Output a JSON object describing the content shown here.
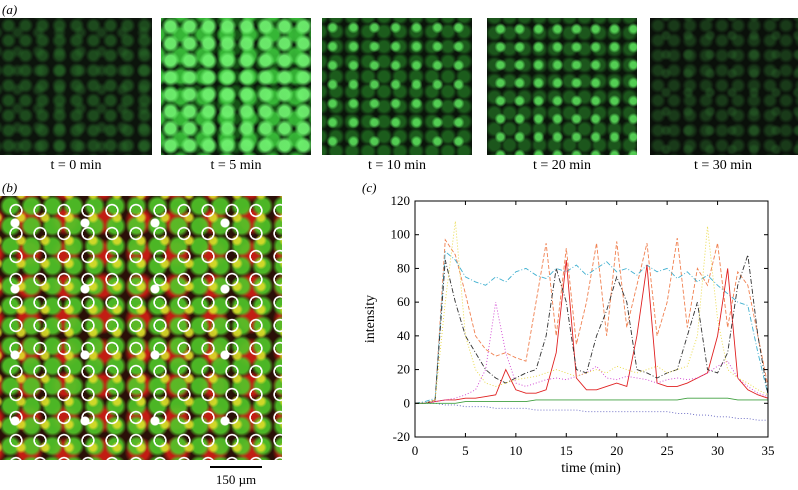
{
  "panel_a": {
    "label": "(a)",
    "captions": [
      "t = 0 min",
      "t = 5 min",
      "t = 10 min",
      "t = 20 min",
      "t = 30 min"
    ]
  },
  "panel_b": {
    "label": "(b)",
    "scale_bar": "150 µm"
  },
  "chart_data": {
    "type": "line",
    "panel_label": "(c)",
    "xlabel": "time (min)",
    "ylabel": "intensity",
    "x": [
      0,
      1,
      2,
      3,
      4,
      5,
      6,
      7,
      8,
      9,
      10,
      11,
      12,
      13,
      14,
      15,
      16,
      17,
      18,
      19,
      20,
      21,
      22,
      23,
      24,
      25,
      26,
      27,
      28,
      29,
      30,
      31,
      32,
      33,
      34,
      35
    ],
    "xlim": [
      0,
      35
    ],
    "xticks": [
      0,
      5,
      10,
      15,
      20,
      25,
      30,
      35
    ],
    "ylim": [
      -20,
      120
    ],
    "yticks": [
      -20,
      0,
      20,
      40,
      60,
      80,
      100,
      120
    ],
    "series": [
      {
        "color": "#f08050",
        "dash": "4 2",
        "values": [
          0,
          0,
          2,
          97,
          88,
          65,
          40,
          32,
          28,
          30,
          27,
          25,
          60,
          95,
          40,
          92,
          35,
          60,
          95,
          40,
          96,
          45,
          70,
          95,
          40,
          60,
          98,
          45,
          80,
          70,
          95,
          45,
          78,
          70,
          40,
          10
        ]
      },
      {
        "color": "#40b0d0",
        "dash": "5 2 1 2",
        "values": [
          0,
          1,
          3,
          90,
          85,
          75,
          72,
          70,
          75,
          72,
          78,
          80,
          76,
          74,
          80,
          78,
          82,
          76,
          80,
          84,
          78,
          80,
          76,
          82,
          78,
          80,
          74,
          78,
          72,
          76,
          70,
          65,
          60,
          58,
          30,
          5
        ]
      },
      {
        "color": "#e02020",
        "dash": "none",
        "values": [
          0,
          0,
          1,
          2,
          2,
          3,
          3,
          4,
          5,
          20,
          8,
          6,
          6,
          8,
          30,
          85,
          15,
          8,
          8,
          10,
          12,
          10,
          40,
          82,
          12,
          10,
          10,
          12,
          15,
          18,
          40,
          80,
          15,
          8,
          5,
          3
        ]
      },
      {
        "color": "#303030",
        "dash": "5 2 1 2",
        "values": [
          0,
          0,
          2,
          85,
          60,
          40,
          30,
          20,
          15,
          12,
          15,
          18,
          20,
          40,
          80,
          60,
          20,
          18,
          40,
          55,
          75,
          60,
          20,
          18,
          15,
          18,
          20,
          40,
          60,
          20,
          18,
          30,
          70,
          88,
          40,
          5
        ]
      },
      {
        "color": "#d040d0",
        "dash": "1 2",
        "values": [
          0,
          0,
          1,
          2,
          3,
          5,
          8,
          20,
          60,
          30,
          12,
          10,
          12,
          14,
          15,
          14,
          16,
          18,
          22,
          15,
          14,
          16,
          15,
          14,
          12,
          14,
          15,
          14,
          15,
          18,
          22,
          25,
          15,
          10,
          6,
          4
        ]
      },
      {
        "color": "#e8d840",
        "dash": "1 2",
        "values": [
          0,
          0,
          2,
          60,
          108,
          40,
          20,
          12,
          10,
          12,
          14,
          15,
          16,
          18,
          20,
          18,
          16,
          18,
          20,
          18,
          22,
          20,
          18,
          20,
          22,
          18,
          20,
          22,
          40,
          105,
          50,
          20,
          15,
          12,
          8,
          5
        ]
      },
      {
        "color": "#6060c0",
        "dash": "1 2",
        "values": [
          0,
          0,
          0,
          -1,
          -1,
          -2,
          -2,
          -2,
          -3,
          -3,
          -3,
          -3,
          -4,
          -4,
          -4,
          -4,
          -4,
          -5,
          -5,
          -5,
          -5,
          -5,
          -5,
          -5,
          -5,
          -5,
          -6,
          -6,
          -7,
          -7,
          -8,
          -8,
          -9,
          -9,
          -10,
          -10
        ]
      },
      {
        "color": "#40a040",
        "dash": "none",
        "values": [
          0,
          0,
          0,
          0,
          0,
          1,
          1,
          1,
          1,
          1,
          1,
          1,
          2,
          2,
          2,
          2,
          2,
          2,
          2,
          2,
          2,
          2,
          2,
          2,
          2,
          2,
          2,
          3,
          3,
          3,
          3,
          3,
          2,
          2,
          2,
          2
        ]
      }
    ]
  }
}
